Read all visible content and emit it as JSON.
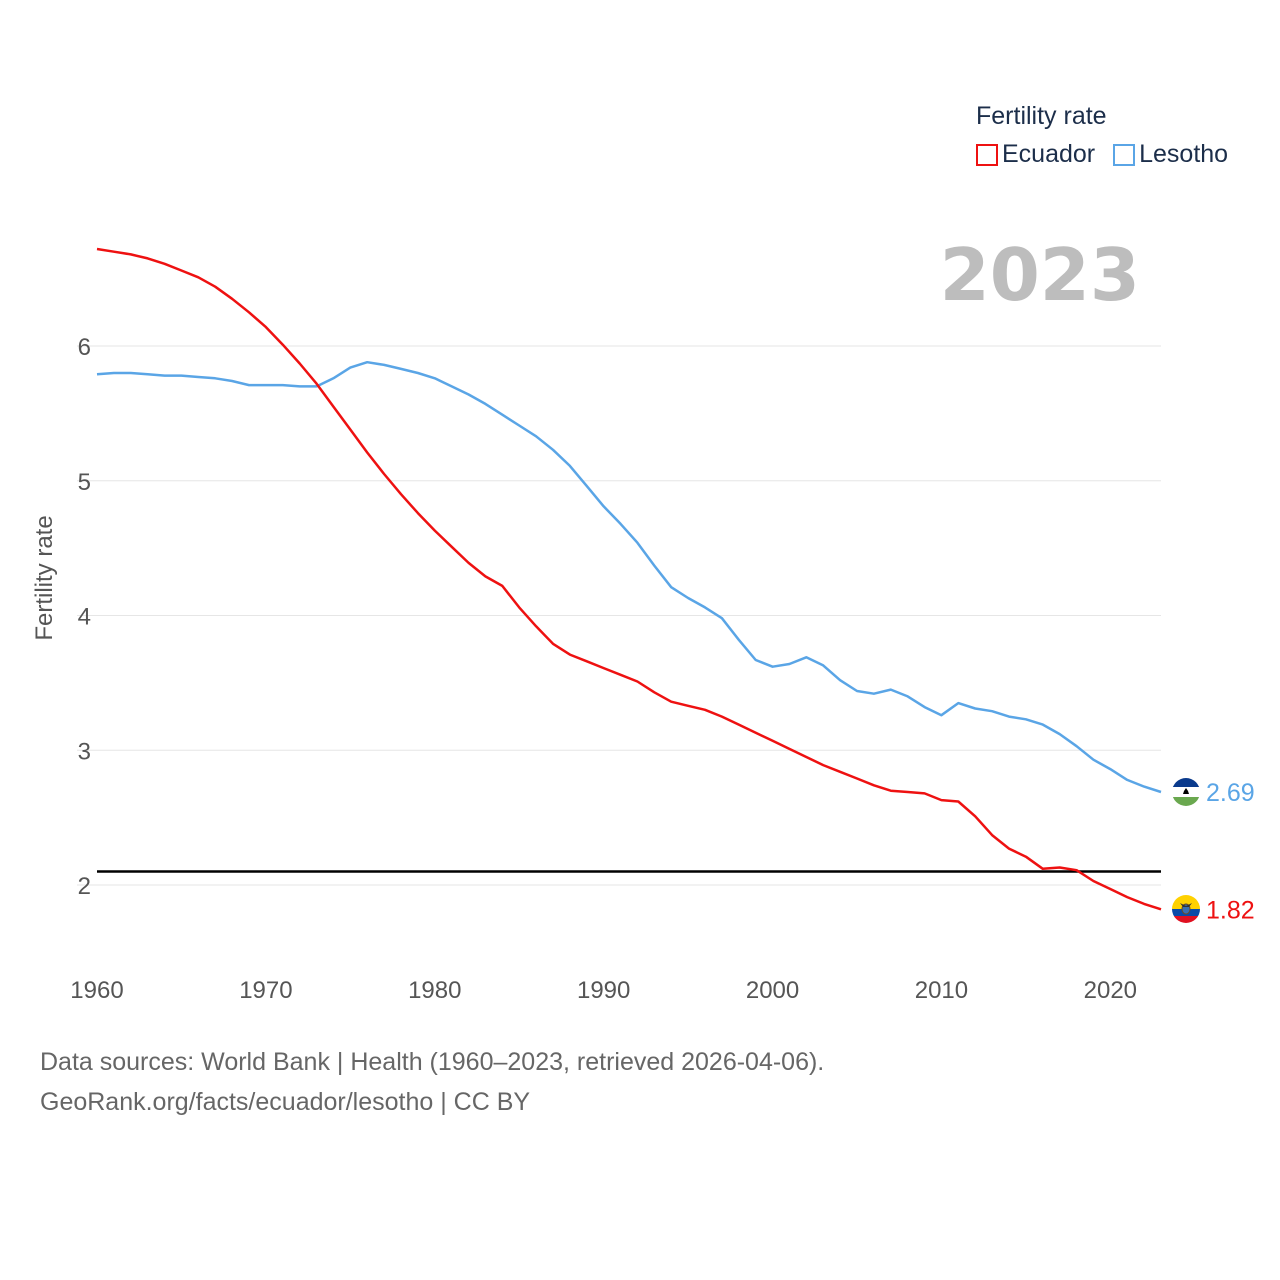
{
  "legend": {
    "title": "Fertility rate",
    "items": [
      {
        "name": "Ecuador",
        "color": "#ee1111"
      },
      {
        "name": "Lesotho",
        "color": "#5aa5e6"
      }
    ]
  },
  "year_display": "2023",
  "footer": {
    "line1": "Data sources: World Bank | Health (1960–2023, retrieved 2026-04-06).",
    "line2": "GeoRank.org/facts/ecuador/lesotho | CC BY"
  },
  "chart_data": {
    "type": "line",
    "title": "Fertility rate",
    "xlabel": "",
    "ylabel": "Fertility rate",
    "xlim": [
      1960,
      2023
    ],
    "ylim": [
      1.5,
      6.75
    ],
    "xticks": [
      1960,
      1970,
      1980,
      1990,
      2000,
      2010,
      2020
    ],
    "yticks": [
      2,
      3,
      4,
      5,
      6
    ],
    "reference_line": {
      "y": 2.1,
      "color": "#000000"
    },
    "grid": true,
    "legend_position": "top-right",
    "x": [
      1960,
      1961,
      1962,
      1963,
      1964,
      1965,
      1966,
      1967,
      1968,
      1969,
      1970,
      1971,
      1972,
      1973,
      1974,
      1975,
      1976,
      1977,
      1978,
      1979,
      1980,
      1981,
      1982,
      1983,
      1984,
      1985,
      1986,
      1987,
      1988,
      1989,
      1990,
      1991,
      1992,
      1993,
      1994,
      1995,
      1996,
      1997,
      1998,
      1999,
      2000,
      2001,
      2002,
      2003,
      2004,
      2005,
      2006,
      2007,
      2008,
      2009,
      2010,
      2011,
      2012,
      2013,
      2014,
      2015,
      2016,
      2017,
      2018,
      2019,
      2020,
      2021,
      2022,
      2023
    ],
    "series": [
      {
        "name": "Ecuador",
        "color": "#ee1111",
        "end_label": "1.82",
        "values": [
          6.72,
          6.7,
          6.68,
          6.65,
          6.61,
          6.56,
          6.51,
          6.44,
          6.35,
          6.25,
          6.14,
          6.01,
          5.87,
          5.72,
          5.55,
          5.38,
          5.21,
          5.05,
          4.9,
          4.76,
          4.63,
          4.51,
          4.39,
          4.29,
          4.22,
          4.06,
          3.92,
          3.79,
          3.71,
          3.66,
          3.61,
          3.56,
          3.51,
          3.43,
          3.36,
          3.33,
          3.3,
          3.25,
          3.19,
          3.13,
          3.07,
          3.01,
          2.95,
          2.89,
          2.84,
          2.79,
          2.74,
          2.7,
          2.69,
          2.68,
          2.63,
          2.62,
          2.51,
          2.37,
          2.27,
          2.21,
          2.12,
          2.13,
          2.11,
          2.03,
          1.97,
          1.91,
          1.86,
          1.82
        ]
      },
      {
        "name": "Lesotho",
        "color": "#5aa5e6",
        "end_label": "2.69",
        "values": [
          5.79,
          5.8,
          5.8,
          5.79,
          5.78,
          5.78,
          5.77,
          5.76,
          5.74,
          5.71,
          5.71,
          5.71,
          5.7,
          5.7,
          5.76,
          5.84,
          5.88,
          5.86,
          5.83,
          5.8,
          5.76,
          5.7,
          5.64,
          5.57,
          5.49,
          5.41,
          5.33,
          5.23,
          5.11,
          4.96,
          4.81,
          4.68,
          4.54,
          4.37,
          4.21,
          4.13,
          4.06,
          3.98,
          3.82,
          3.67,
          3.62,
          3.64,
          3.69,
          3.63,
          3.52,
          3.44,
          3.42,
          3.45,
          3.4,
          3.32,
          3.26,
          3.35,
          3.31,
          3.29,
          3.25,
          3.23,
          3.19,
          3.12,
          3.03,
          2.93,
          2.86,
          2.78,
          2.73,
          2.69
        ]
      }
    ]
  }
}
